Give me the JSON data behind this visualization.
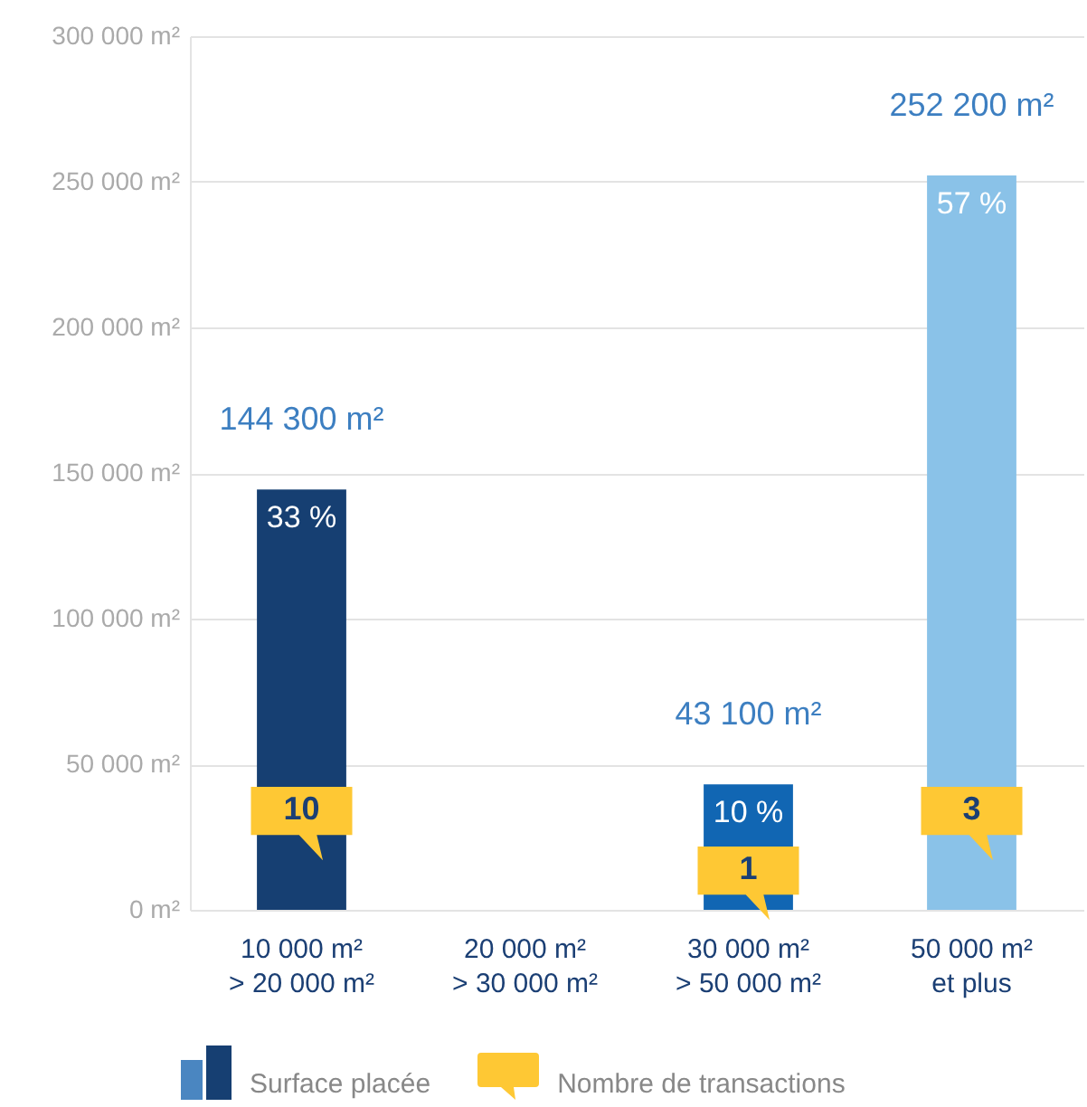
{
  "chart_data": {
    "type": "bar",
    "categories": [
      "10 000 m²\n> 20 000 m²",
      "20 000 m²\n> 30 000 m²",
      "30 000 m²\n> 50 000 m²",
      "50 000 m²\net plus"
    ],
    "series": [
      {
        "name": "Surface placée",
        "values": [
          144300,
          0,
          43100,
          252200
        ],
        "colors": [
          "#163f72",
          "#8ac2e8",
          "#1166b3",
          "#8ac2e8"
        ],
        "value_labels": [
          "144 300 m²",
          null,
          "43 100 m²",
          "252 200 m²"
        ]
      }
    ],
    "ylim": [
      0,
      300000
    ],
    "yticks": [
      {
        "value": 0,
        "label": "0 m²"
      },
      {
        "value": 50000,
        "label": "50 000 m²"
      },
      {
        "value": 100000,
        "label": "100 000 m²"
      },
      {
        "value": 150000,
        "label": "150 000 m²"
      },
      {
        "value": 200000,
        "label": "200 000 m²"
      },
      {
        "value": 250000,
        "label": "250 000 m²"
      },
      {
        "value": 300000,
        "label": "300 000 m²"
      }
    ],
    "grid": "y",
    "legend": "bottom",
    "annotations": [
      {
        "text": "33 %",
        "x": "10 000 m²\n> 20 000 m²",
        "y": 144300
      },
      {
        "text": "10 %",
        "x": "30 000 m²\n> 50 000 m²",
        "y": 43100
      },
      {
        "text": "57 %",
        "x": "50 000 m²\net plus",
        "y": 252200
      },
      "10",
      "1",
      "3",
      "Nombre de transactions"
    ]
  }
}
